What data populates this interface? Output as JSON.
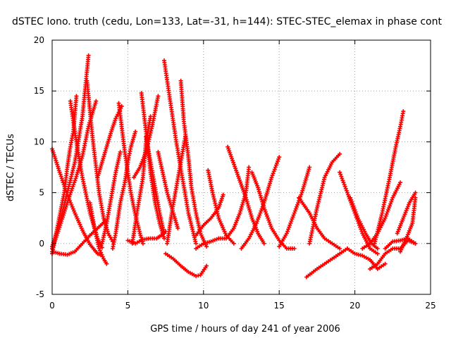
{
  "chart_data": {
    "type": "scatter",
    "title": "dSTEC Iono. truth (cedu, Lon=133, Lat=-31, h=144): STEC-STEC_elemax in phase cont",
    "xlabel": "GPS time / hours of day 241 of year 2006",
    "ylabel": "dSTEC  / TECUs",
    "xlim": [
      0,
      25
    ],
    "ylim": [
      -5,
      20
    ],
    "xticks": [
      0,
      5,
      10,
      15,
      20,
      25
    ],
    "yticks": [
      -5,
      0,
      5,
      10,
      15,
      20
    ],
    "grid": true,
    "marker": "plus",
    "color": "#ff0000",
    "series": [
      {
        "x": [
          0.0,
          0.5,
          1.0,
          1.5,
          2.0,
          2.5,
          3.0,
          3.2
        ],
        "y": [
          9.3,
          7.0,
          4.8,
          3.0,
          1.3,
          -0.1,
          -1.0,
          -1.1
        ]
      },
      {
        "x": [
          0.0,
          0.4,
          1.0,
          1.6,
          2.0,
          2.4,
          2.9
        ],
        "y": [
          -0.5,
          1.2,
          4.0,
          6.6,
          8.6,
          11.5,
          14.0
        ]
      },
      {
        "x": [
          0.0,
          0.4,
          0.8,
          1.0,
          1.2,
          1.4,
          1.6
        ],
        "y": [
          -1.0,
          2.0,
          5.0,
          7.5,
          9.5,
          11.0,
          14.5
        ]
      },
      {
        "x": [
          0.0,
          0.5,
          1.0,
          1.5,
          2.0,
          2.4
        ],
        "y": [
          -0.3,
          2.0,
          5.0,
          8.0,
          12.5,
          18.5
        ]
      },
      {
        "x": [
          0.0,
          0.5,
          1.0,
          1.5,
          2.0,
          2.5,
          3.0,
          3.5
        ],
        "y": [
          -0.8,
          -1.0,
          -1.1,
          -0.8,
          0.0,
          0.8,
          1.5,
          2.2
        ]
      },
      {
        "x": [
          1.2,
          1.6,
          2.0,
          2.5,
          3.0,
          3.3
        ],
        "y": [
          14.0,
          10.0,
          6.5,
          3.0,
          0.5,
          -0.4
        ]
      },
      {
        "x": [
          2.3,
          2.7,
          3.1,
          3.4,
          3.7,
          4.0
        ],
        "y": [
          16.0,
          10.0,
          5.0,
          2.5,
          1.0,
          0.2
        ]
      },
      {
        "x": [
          2.5,
          2.8,
          3.1,
          3.4,
          3.6
        ],
        "y": [
          4.0,
          1.5,
          -0.5,
          -1.5,
          -2.0
        ]
      },
      {
        "x": [
          3.0,
          3.3,
          3.6,
          3.9,
          4.2,
          4.6
        ],
        "y": [
          6.5,
          8.0,
          9.5,
          11.0,
          12.3,
          13.5
        ]
      },
      {
        "x": [
          3.3,
          3.6,
          3.9,
          4.2,
          4.5
        ],
        "y": [
          0.0,
          2.0,
          4.5,
          7.0,
          9.0
        ]
      },
      {
        "x": [
          4.0,
          4.2,
          4.5,
          4.8,
          5.0,
          5.2,
          5.5
        ],
        "y": [
          -0.5,
          1.0,
          4.0,
          6.0,
          8.0,
          9.5,
          11.0
        ]
      },
      {
        "x": [
          4.4,
          4.8,
          5.2,
          5.5,
          5.8,
          6.0
        ],
        "y": [
          13.8,
          9.0,
          5.0,
          2.8,
          1.0,
          0.0
        ]
      },
      {
        "x": [
          5.0,
          5.5,
          6.0,
          6.5,
          6.9,
          7.2,
          7.5
        ],
        "y": [
          0.3,
          0.0,
          0.4,
          0.5,
          0.5,
          0.8,
          1.2
        ]
      },
      {
        "x": [
          5.3,
          5.6,
          6.0,
          6.2,
          6.5
        ],
        "y": [
          0.0,
          3.0,
          6.5,
          10.0,
          12.5
        ]
      },
      {
        "x": [
          5.4,
          5.8,
          6.2,
          6.6,
          7.0
        ],
        "y": [
          6.5,
          7.5,
          9.0,
          11.5,
          14.5
        ]
      },
      {
        "x": [
          5.9,
          6.2,
          6.5,
          6.8,
          7.1,
          7.4
        ],
        "y": [
          14.8,
          11.0,
          7.0,
          4.0,
          2.0,
          0.5
        ]
      },
      {
        "x": [
          6.2,
          6.5,
          6.8,
          7.1,
          7.4
        ],
        "y": [
          10.5,
          8.0,
          5.5,
          3.0,
          1.0
        ]
      },
      {
        "x": [
          7.0,
          7.3,
          7.6,
          8.0,
          8.3
        ],
        "y": [
          9.0,
          7.0,
          5.0,
          3.0,
          1.5
        ]
      },
      {
        "x": [
          7.4,
          7.8,
          8.2,
          8.6,
          9.0,
          9.5
        ],
        "y": [
          18.0,
          14.0,
          10.0,
          6.5,
          3.0,
          0.0
        ]
      },
      {
        "x": [
          7.6,
          7.9,
          8.2,
          8.5,
          8.8
        ],
        "y": [
          0.0,
          3.0,
          5.5,
          8.0,
          10.5
        ]
      },
      {
        "x": [
          8.5,
          8.7,
          9.0,
          9.2,
          9.5,
          9.8,
          10.2
        ],
        "y": [
          16.0,
          12.0,
          8.5,
          5.5,
          3.0,
          1.0,
          -0.3
        ]
      },
      {
        "x": [
          7.5,
          8.0,
          8.5,
          9.0,
          9.5,
          9.8,
          10.2
        ],
        "y": [
          -1.0,
          -1.5,
          -2.2,
          -2.8,
          -3.2,
          -3.1,
          -2.2
        ]
      },
      {
        "x": [
          9.5,
          10.0,
          10.5,
          11.0
        ],
        "y": [
          -0.5,
          0.0,
          0.2,
          0.5
        ]
      },
      {
        "x": [
          9.5,
          10.0,
          10.5,
          11.0,
          11.3
        ],
        "y": [
          0.8,
          1.8,
          2.5,
          3.5,
          4.8
        ]
      },
      {
        "x": [
          10.3,
          10.6,
          11.0,
          11.5,
          12.0
        ],
        "y": [
          7.2,
          5.0,
          2.5,
          0.8,
          0.0
        ]
      },
      {
        "x": [
          11.6,
          12.2,
          12.8,
          13.2,
          13.6,
          14.0
        ],
        "y": [
          9.5,
          7.0,
          4.5,
          2.5,
          1.0,
          0.0
        ]
      },
      {
        "x": [
          11.0,
          11.5,
          12.0,
          12.4,
          12.8,
          13.0
        ],
        "y": [
          0.5,
          0.5,
          1.5,
          3.0,
          5.0,
          7.5
        ]
      },
      {
        "x": [
          12.5,
          13.0,
          13.5,
          14.0,
          14.5,
          15.0
        ],
        "y": [
          -0.5,
          0.5,
          2.0,
          4.0,
          6.5,
          8.5
        ]
      },
      {
        "x": [
          13.2,
          13.6,
          14.0,
          14.5,
          15.0,
          15.5,
          16.0
        ],
        "y": [
          7.0,
          5.5,
          3.5,
          1.5,
          0.3,
          -0.5,
          -0.5
        ]
      },
      {
        "x": [
          15.0,
          15.5,
          16.0,
          16.5,
          17.0
        ],
        "y": [
          -0.3,
          1.0,
          3.0,
          5.0,
          7.5
        ]
      },
      {
        "x": [
          16.3,
          17.0,
          17.5,
          18.0,
          18.5,
          19.0
        ],
        "y": [
          4.5,
          3.0,
          1.5,
          0.5,
          0.0,
          -0.5
        ]
      },
      {
        "x": [
          17.0,
          17.5,
          18.0,
          18.5,
          19.0
        ],
        "y": [
          0.0,
          3.5,
          6.5,
          8.0,
          8.8
        ]
      },
      {
        "x": [
          16.8,
          17.5,
          18.0,
          18.5,
          19.0,
          19.5
        ],
        "y": [
          -3.3,
          -2.5,
          -2.0,
          -1.5,
          -1.0,
          -0.5
        ]
      },
      {
        "x": [
          19.0,
          19.5,
          20.0,
          20.5,
          21.0,
          21.5
        ],
        "y": [
          7.0,
          5.0,
          3.0,
          1.0,
          -0.5,
          -1.0
        ]
      },
      {
        "x": [
          19.5,
          20.0,
          20.5,
          21.0,
          21.5,
          22.0
        ],
        "y": [
          -0.5,
          -1.0,
          -1.2,
          -1.6,
          -2.5,
          -2.0
        ]
      },
      {
        "x": [
          19.7,
          20.2,
          20.7,
          21.1,
          21.5
        ],
        "y": [
          4.5,
          2.5,
          1.0,
          0.0,
          -0.5
        ]
      },
      {
        "x": [
          20.5,
          21.0,
          21.5,
          22.0,
          22.5,
          23.0
        ],
        "y": [
          -0.5,
          0.0,
          1.0,
          2.5,
          4.5,
          6.0
        ]
      },
      {
        "x": [
          21.3,
          21.8,
          22.3,
          22.7,
          23.0,
          23.2
        ],
        "y": [
          0.0,
          3.0,
          6.5,
          9.5,
          11.5,
          13.0
        ]
      },
      {
        "x": [
          21.0,
          21.5,
          22.0,
          22.5,
          23.0,
          23.5,
          24.0
        ],
        "y": [
          -2.5,
          -2.0,
          -1.0,
          -0.5,
          -0.5,
          0.3,
          0.0
        ]
      },
      {
        "x": [
          22.0,
          22.5,
          23.0,
          23.5,
          24.0
        ],
        "y": [
          -0.5,
          0.2,
          0.3,
          0.5,
          0.0
        ]
      },
      {
        "x": [
          22.8,
          23.2,
          23.6,
          24.0
        ],
        "y": [
          1.0,
          2.5,
          4.0,
          5.0
        ]
      },
      {
        "x": [
          23.0,
          23.4,
          23.8,
          24.0
        ],
        "y": [
          -0.8,
          0.5,
          2.0,
          4.5
        ]
      }
    ]
  }
}
